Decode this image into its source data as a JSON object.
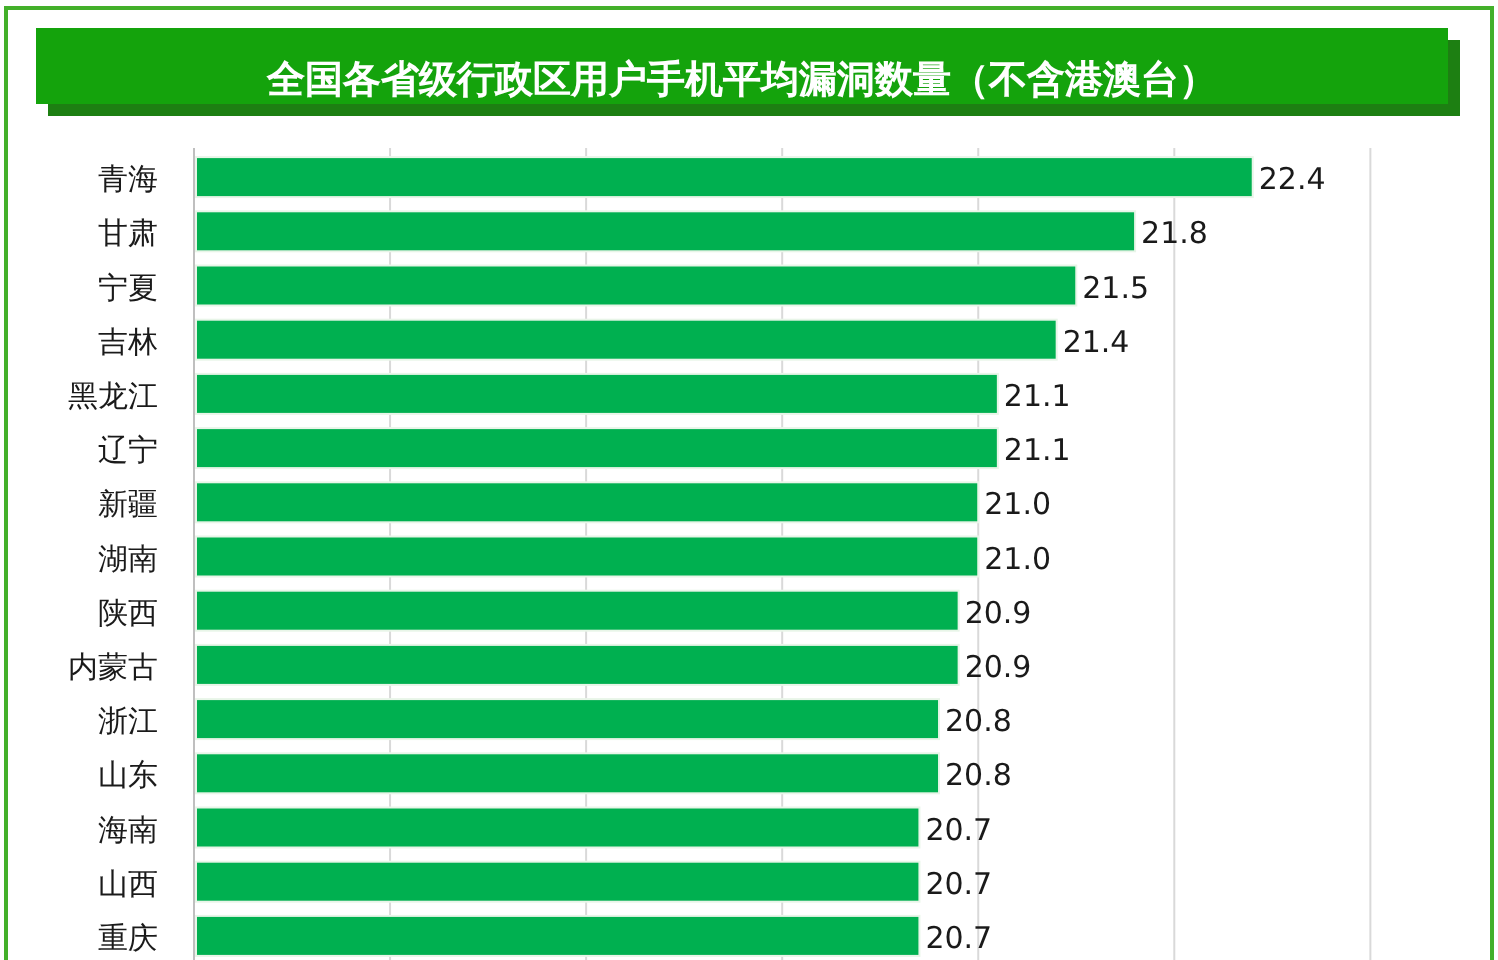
{
  "chart_data": {
    "type": "bar",
    "orientation": "horizontal",
    "title": "全国各省级行政区用户手机平均漏洞数量（不含港澳台）",
    "categories": [
      "青海",
      "甘肃",
      "宁夏",
      "吉林",
      "黑龙江",
      "辽宁",
      "新疆",
      "湖南",
      "陕西",
      "内蒙古",
      "浙江",
      "山东",
      "海南",
      "山西",
      "重庆"
    ],
    "values": [
      22.4,
      21.8,
      21.5,
      21.4,
      21.1,
      21.1,
      21.0,
      21.0,
      20.9,
      20.9,
      20.8,
      20.8,
      20.7,
      20.7,
      20.7
    ],
    "color": "#00b050",
    "xlim": [
      17,
      23.6
    ],
    "xticks": [
      {
        "value": 17,
        "label": null
      },
      {
        "value": 18,
        "label": null
      },
      {
        "value": 19,
        "label": null
      },
      {
        "value": 20,
        "label": null
      },
      {
        "value": 21,
        "label": null
      },
      {
        "value": 22,
        "label": null
      },
      {
        "value": 23,
        "label": null
      }
    ],
    "value_labels": [
      "22.4",
      "21.8",
      "21.5",
      "21.4",
      "21.1",
      "21.1",
      "21.0",
      "21.0",
      "20.9",
      "20.9",
      "20.8",
      "20.8",
      "20.7",
      "20.7",
      "20.7"
    ],
    "grid": "x",
    "tick_labels": "y"
  }
}
